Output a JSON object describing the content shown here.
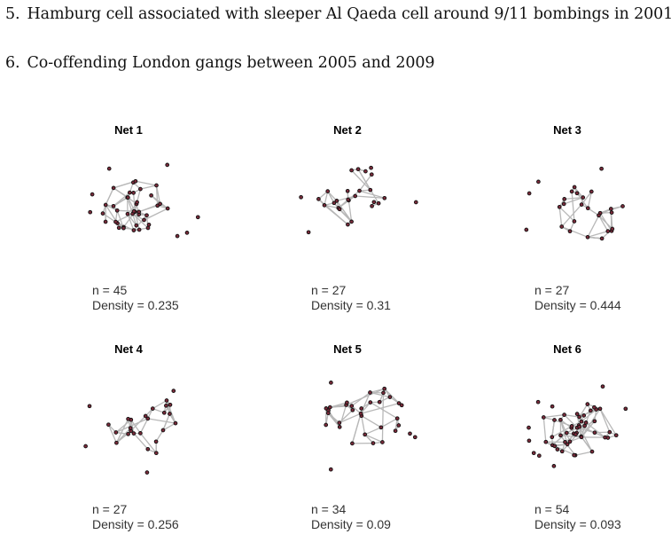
{
  "items": [
    {
      "number": "5.",
      "text": "Hamburg cell associated with sleeper Al Qaeda cell around 9/11 bombings in 2001"
    },
    {
      "number": "6.",
      "text": "Co-offending London gangs between 2005 and 2009"
    }
  ],
  "networks": [
    {
      "title": "Net 1",
      "n": "n = 45",
      "density": "Density  = 0.235",
      "nodes": 45,
      "density_value": 0.235
    },
    {
      "title": "Net 2",
      "n": "n = 27",
      "density": "Density  = 0.31",
      "nodes": 27,
      "density_value": 0.31
    },
    {
      "title": "Net 3",
      "n": "n = 27",
      "density": "Density  = 0.444",
      "nodes": 27,
      "density_value": 0.444
    },
    {
      "title": "Net 4",
      "n": "n = 27",
      "density": "Density  = 0.256",
      "nodes": 27,
      "density_value": 0.256
    },
    {
      "title": "Net 5",
      "n": "n = 34",
      "density": "Density  = 0.09",
      "nodes": 34,
      "density_value": 0.09
    },
    {
      "title": "Net 6",
      "n": "n = 54",
      "density": "Density  = 0.093",
      "nodes": 54,
      "density_value": 0.093
    }
  ],
  "colors": {
    "edge": "#b8b8b8",
    "node_fill": "#7a2a3a",
    "node_stroke": "#111111"
  }
}
